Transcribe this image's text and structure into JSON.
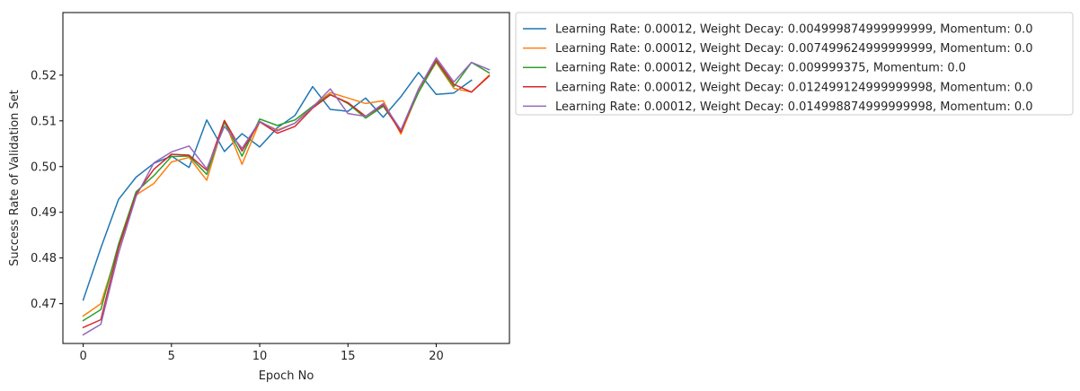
{
  "chart_data": {
    "type": "line",
    "title": "",
    "xlabel": "Epoch No",
    "ylabel": "Success Rate of Validation Set",
    "xlim": [
      -1.15,
      24.15
    ],
    "ylim": [
      0.4613,
      0.5337
    ],
    "xticks": [
      0,
      5,
      10,
      15,
      20
    ],
    "yticks": [
      0.47,
      0.48,
      0.49,
      0.5,
      0.51,
      0.52
    ],
    "ytick_labels": [
      "0.47",
      "0.48",
      "0.49",
      "0.50",
      "0.51",
      "0.52"
    ],
    "grid": false,
    "legend_position": "outside-top-right",
    "series": [
      {
        "name": "Learning Rate: 0.00012, Weight Decay: 0.004999874999999999, Momentum: 0.0",
        "color": "#1f77b4",
        "x": [
          0,
          1,
          2,
          3,
          4,
          5,
          6,
          7,
          8,
          9,
          10,
          11,
          12,
          13,
          14,
          15,
          16,
          17,
          18,
          19,
          20,
          21,
          22
        ],
        "values": [
          0.4708,
          0.4822,
          0.4928,
          0.4977,
          0.5007,
          0.5023,
          0.4998,
          0.5102,
          0.5033,
          0.5072,
          0.5043,
          0.5085,
          0.5112,
          0.5175,
          0.5125,
          0.5121,
          0.515,
          0.5108,
          0.5153,
          0.5206,
          0.5158,
          0.5161,
          0.5189
        ]
      },
      {
        "name": "Learning Rate: 0.00012, Weight Decay: 0.007499624999999999, Momentum: 0.0",
        "color": "#ff7f0e",
        "x": [
          0,
          1,
          2,
          3,
          4,
          5,
          6,
          7,
          8,
          9,
          10,
          11,
          12,
          13,
          14,
          15,
          16,
          17,
          18,
          19,
          20,
          21,
          22,
          23
        ],
        "values": [
          0.4673,
          0.47,
          0.4823,
          0.4938,
          0.4963,
          0.501,
          0.502,
          0.497,
          0.51,
          0.5005,
          0.5098,
          0.508,
          0.5095,
          0.5132,
          0.5162,
          0.515,
          0.5138,
          0.5144,
          0.5071,
          0.5165,
          0.5228,
          0.5171,
          0.5163,
          0.52
        ]
      },
      {
        "name": "Learning Rate: 0.00012, Weight Decay: 0.009999375, Momentum: 0.0",
        "color": "#2ca02c",
        "x": [
          0,
          1,
          2,
          3,
          4,
          5,
          6,
          7,
          8,
          9,
          10,
          11,
          12,
          13,
          14,
          15,
          16,
          17,
          18,
          19,
          20,
          21,
          22,
          23
        ],
        "values": [
          0.4663,
          0.4687,
          0.483,
          0.4945,
          0.498,
          0.5022,
          0.5023,
          0.4983,
          0.5097,
          0.5023,
          0.5104,
          0.509,
          0.5102,
          0.5132,
          0.5158,
          0.5138,
          0.5106,
          0.5132,
          0.5078,
          0.5162,
          0.523,
          0.5175,
          0.5228,
          0.5205
        ]
      },
      {
        "name": "Learning Rate: 0.00012, Weight Decay: 0.012499124999999998, Momentum: 0.0",
        "color": "#d62728",
        "x": [
          0,
          1,
          2,
          3,
          4,
          5,
          6,
          7,
          8,
          9,
          10,
          11,
          12,
          13,
          14,
          15,
          16,
          17,
          18,
          19,
          20,
          21,
          22,
          23
        ],
        "values": [
          0.4648,
          0.4665,
          0.4822,
          0.494,
          0.4994,
          0.5027,
          0.5025,
          0.4992,
          0.5101,
          0.5034,
          0.5098,
          0.5073,
          0.5088,
          0.5128,
          0.5157,
          0.514,
          0.511,
          0.5135,
          0.5075,
          0.517,
          0.5233,
          0.518,
          0.5163,
          0.5198
        ]
      },
      {
        "name": "Learning Rate: 0.00012, Weight Decay: 0.014998874999999998, Momentum: 0.0",
        "color": "#9467bd",
        "x": [
          0,
          1,
          2,
          3,
          4,
          5,
          6,
          7,
          8,
          9,
          10,
          11,
          12,
          13,
          14,
          15,
          16,
          17,
          18,
          19,
          20,
          21,
          22,
          23
        ],
        "values": [
          0.4632,
          0.4655,
          0.481,
          0.4935,
          0.5008,
          0.5032,
          0.5045,
          0.4995,
          0.5088,
          0.504,
          0.5099,
          0.5078,
          0.5095,
          0.513,
          0.517,
          0.5116,
          0.511,
          0.5138,
          0.508,
          0.517,
          0.5238,
          0.5185,
          0.5228,
          0.5212
        ]
      }
    ]
  }
}
